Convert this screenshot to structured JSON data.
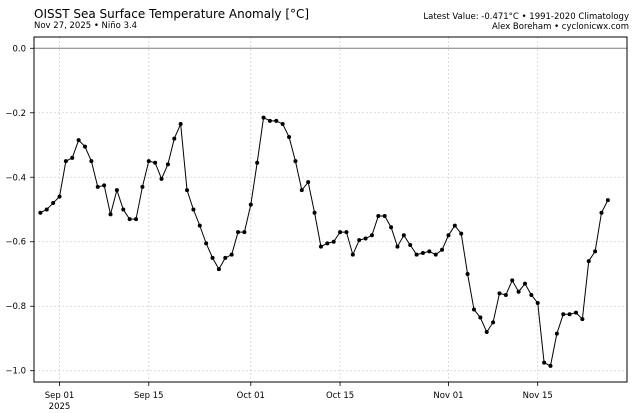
{
  "header": {
    "title": "OISST Sea Surface Temperature Anomaly [°C]",
    "subtitle": "Nov 27, 2025 • Niño 3.4",
    "right_line1": "Latest Value: -0.471°C • 1991-2020 Climatology",
    "right_line2": "Alex Boreham • cyclonicwx.com"
  },
  "chart_data": {
    "type": "line",
    "title": "OISST Sea Surface Temperature Anomaly [°C]",
    "xlabel": "",
    "ylabel": "",
    "x_start": "2025-08-29",
    "x_end": "2025-11-27",
    "xlim": [
      "2025-08-28",
      "2025-11-29"
    ],
    "ylim": [
      -1.035,
      0.035
    ],
    "grid": true,
    "reference_line": 0.0,
    "y_ticks": [
      0.0,
      -0.2,
      -0.4,
      -0.6,
      -0.8,
      -1.0
    ],
    "y_tick_labels": [
      "0.0",
      "−0.2",
      "−0.4",
      "−0.6",
      "−0.8",
      "−1.0"
    ],
    "x_ticks": [
      {
        "date": "2025-09-01",
        "label": "Sep 01",
        "sublabel": "2025"
      },
      {
        "date": "2025-09-15",
        "label": "Sep 15",
        "sublabel": ""
      },
      {
        "date": "2025-10-01",
        "label": "Oct 01",
        "sublabel": ""
      },
      {
        "date": "2025-10-15",
        "label": "Oct 15",
        "sublabel": ""
      },
      {
        "date": "2025-11-01",
        "label": "Nov 01",
        "sublabel": ""
      },
      {
        "date": "2025-11-15",
        "label": "Nov 15",
        "sublabel": ""
      }
    ],
    "series": [
      {
        "color": "#000000",
        "values": [
          -0.51,
          -0.5,
          -0.48,
          -0.46,
          -0.35,
          -0.34,
          -0.285,
          -0.305,
          -0.35,
          -0.43,
          -0.425,
          -0.515,
          -0.44,
          -0.5,
          -0.53,
          -0.53,
          -0.43,
          -0.35,
          -0.355,
          -0.405,
          -0.36,
          -0.28,
          -0.235,
          -0.44,
          -0.5,
          -0.55,
          -0.605,
          -0.65,
          -0.685,
          -0.65,
          -0.64,
          -0.57,
          -0.57,
          -0.485,
          -0.355,
          -0.215,
          -0.225,
          -0.225,
          -0.235,
          -0.275,
          -0.35,
          -0.44,
          -0.415,
          -0.51,
          -0.615,
          -0.605,
          -0.6,
          -0.57,
          -0.57,
          -0.64,
          -0.595,
          -0.59,
          -0.58,
          -0.52,
          -0.52,
          -0.555,
          -0.615,
          -0.58,
          -0.61,
          -0.64,
          -0.635,
          -0.63,
          -0.64,
          -0.625,
          -0.58,
          -0.55,
          -0.575,
          -0.7,
          -0.81,
          -0.835,
          -0.88,
          -0.85,
          -0.76,
          -0.765,
          -0.72,
          -0.755,
          -0.73,
          -0.765,
          -0.79,
          -0.975,
          -0.985,
          -0.885,
          -0.825,
          -0.825,
          -0.82,
          -0.84,
          -0.66,
          -0.63,
          -0.51,
          -0.471
        ]
      }
    ]
  }
}
